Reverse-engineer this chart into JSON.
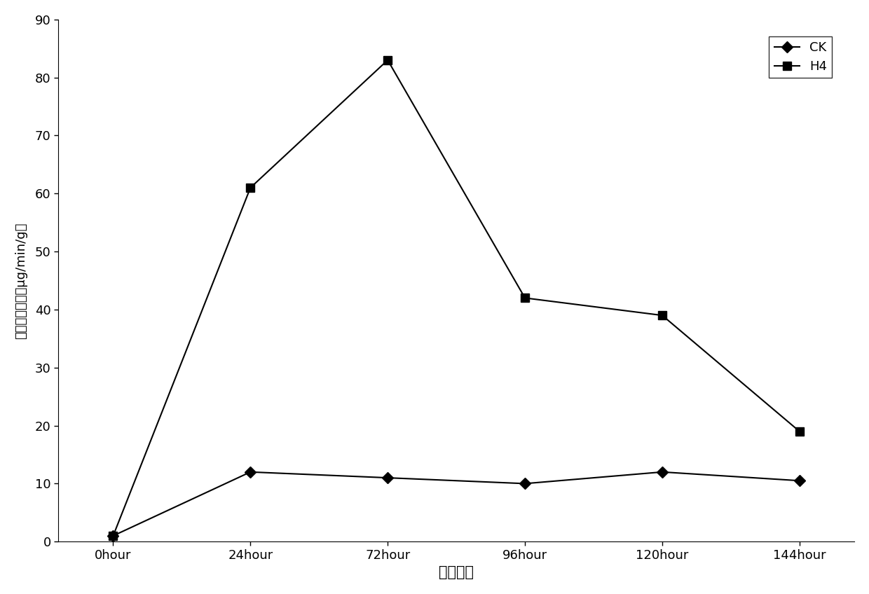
{
  "x_labels": [
    "0hour",
    "24hour",
    "72hour",
    "96hour",
    "120hour",
    "144hour"
  ],
  "x_values": [
    0,
    1,
    2,
    3,
    4,
    5
  ],
  "CK_values": [
    1,
    12,
    11,
    10,
    12,
    10.5
  ],
  "H4_values": [
    1,
    61,
    83,
    42,
    39,
    19
  ],
  "ylabel": "纤维素酶含量（μg/min/g）",
  "xlabel": "发酵时间",
  "ylim": [
    0,
    90
  ],
  "yticks": [
    0,
    10,
    20,
    30,
    40,
    50,
    60,
    70,
    80,
    90
  ],
  "legend_CK": "CK",
  "legend_H4": "H4",
  "line_color": "#000000",
  "marker_CK": "D",
  "marker_H4": "s",
  "bg_color": "#ffffff",
  "figsize": [
    12.4,
    8.48
  ],
  "dpi": 100
}
